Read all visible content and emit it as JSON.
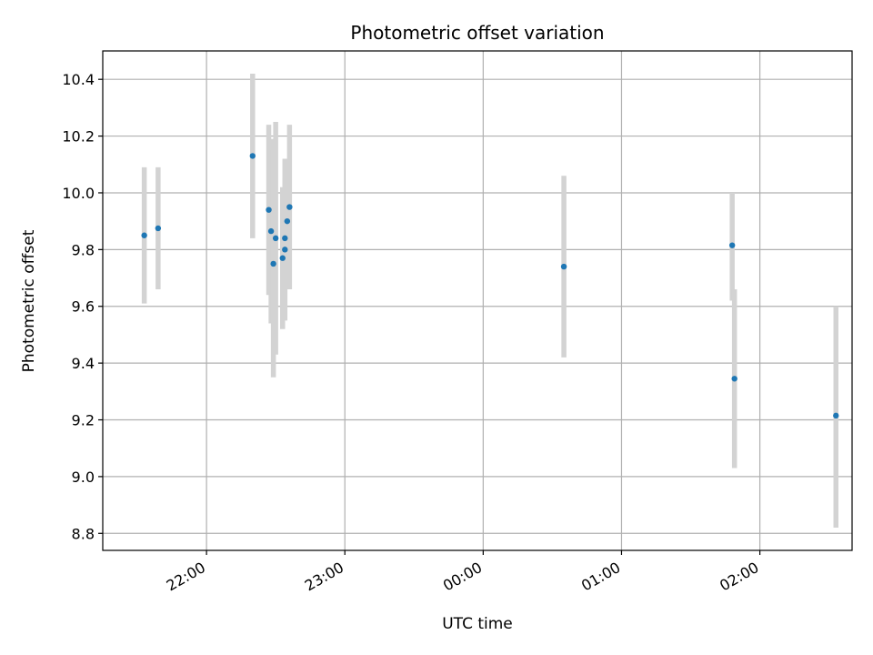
{
  "chart_data": {
    "type": "scatter",
    "title": "Photometric offset variation",
    "xlabel": "UTC time",
    "ylabel": "Photometric offset",
    "x_unit": "UTC time of night, starting 21:00",
    "xlim": [
      "21:15",
      "02:40"
    ],
    "ylim": [
      8.74,
      10.5
    ],
    "x_ticks": [
      "22:00",
      "23:00",
      "00:00",
      "01:00",
      "02:00"
    ],
    "y_ticks": [
      "8.8",
      "9.0",
      "9.2",
      "9.4",
      "9.6",
      "9.8",
      "10.0",
      "10.2",
      "10.4"
    ],
    "grid": true,
    "marker_color": "#1f77b4",
    "errorbar_color": "#d3d3d3",
    "points": [
      {
        "x": "21:33",
        "y": 9.85,
        "yerr_low": 9.61,
        "yerr_high": 10.09
      },
      {
        "x": "21:39",
        "y": 9.875,
        "yerr_low": 9.66,
        "yerr_high": 10.09
      },
      {
        "x": "22:20",
        "y": 10.13,
        "yerr_low": 9.84,
        "yerr_high": 10.42
      },
      {
        "x": "22:27",
        "y": 9.94,
        "yerr_low": 9.64,
        "yerr_high": 10.24
      },
      {
        "x": "22:28",
        "y": 9.865,
        "yerr_low": 9.54,
        "yerr_high": 10.19
      },
      {
        "x": "22:29",
        "y": 9.75,
        "yerr_low": 9.35,
        "yerr_high": 10.15
      },
      {
        "x": "22:30",
        "y": 9.84,
        "yerr_low": 9.43,
        "yerr_high": 10.25
      },
      {
        "x": "22:33",
        "y": 9.77,
        "yerr_low": 9.52,
        "yerr_high": 10.02
      },
      {
        "x": "22:34",
        "y": 9.84,
        "yerr_low": 9.55,
        "yerr_high": 10.12
      },
      {
        "x": "22:34",
        "y": 9.8,
        "yerr_low": 9.6,
        "yerr_high": 10.05
      },
      {
        "x": "22:35",
        "y": 9.9,
        "yerr_low": 9.68,
        "yerr_high": 10.12
      },
      {
        "x": "22:36",
        "y": 9.95,
        "yerr_low": 9.66,
        "yerr_high": 10.24
      },
      {
        "x": "00:35",
        "y": 9.74,
        "yerr_low": 9.42,
        "yerr_high": 10.06
      },
      {
        "x": "01:48",
        "y": 9.815,
        "yerr_low": 9.62,
        "yerr_high": 10.0
      },
      {
        "x": "01:49",
        "y": 9.345,
        "yerr_low": 9.03,
        "yerr_high": 9.66
      },
      {
        "x": "02:33",
        "y": 9.215,
        "yerr_low": 8.82,
        "yerr_high": 9.6
      }
    ]
  }
}
